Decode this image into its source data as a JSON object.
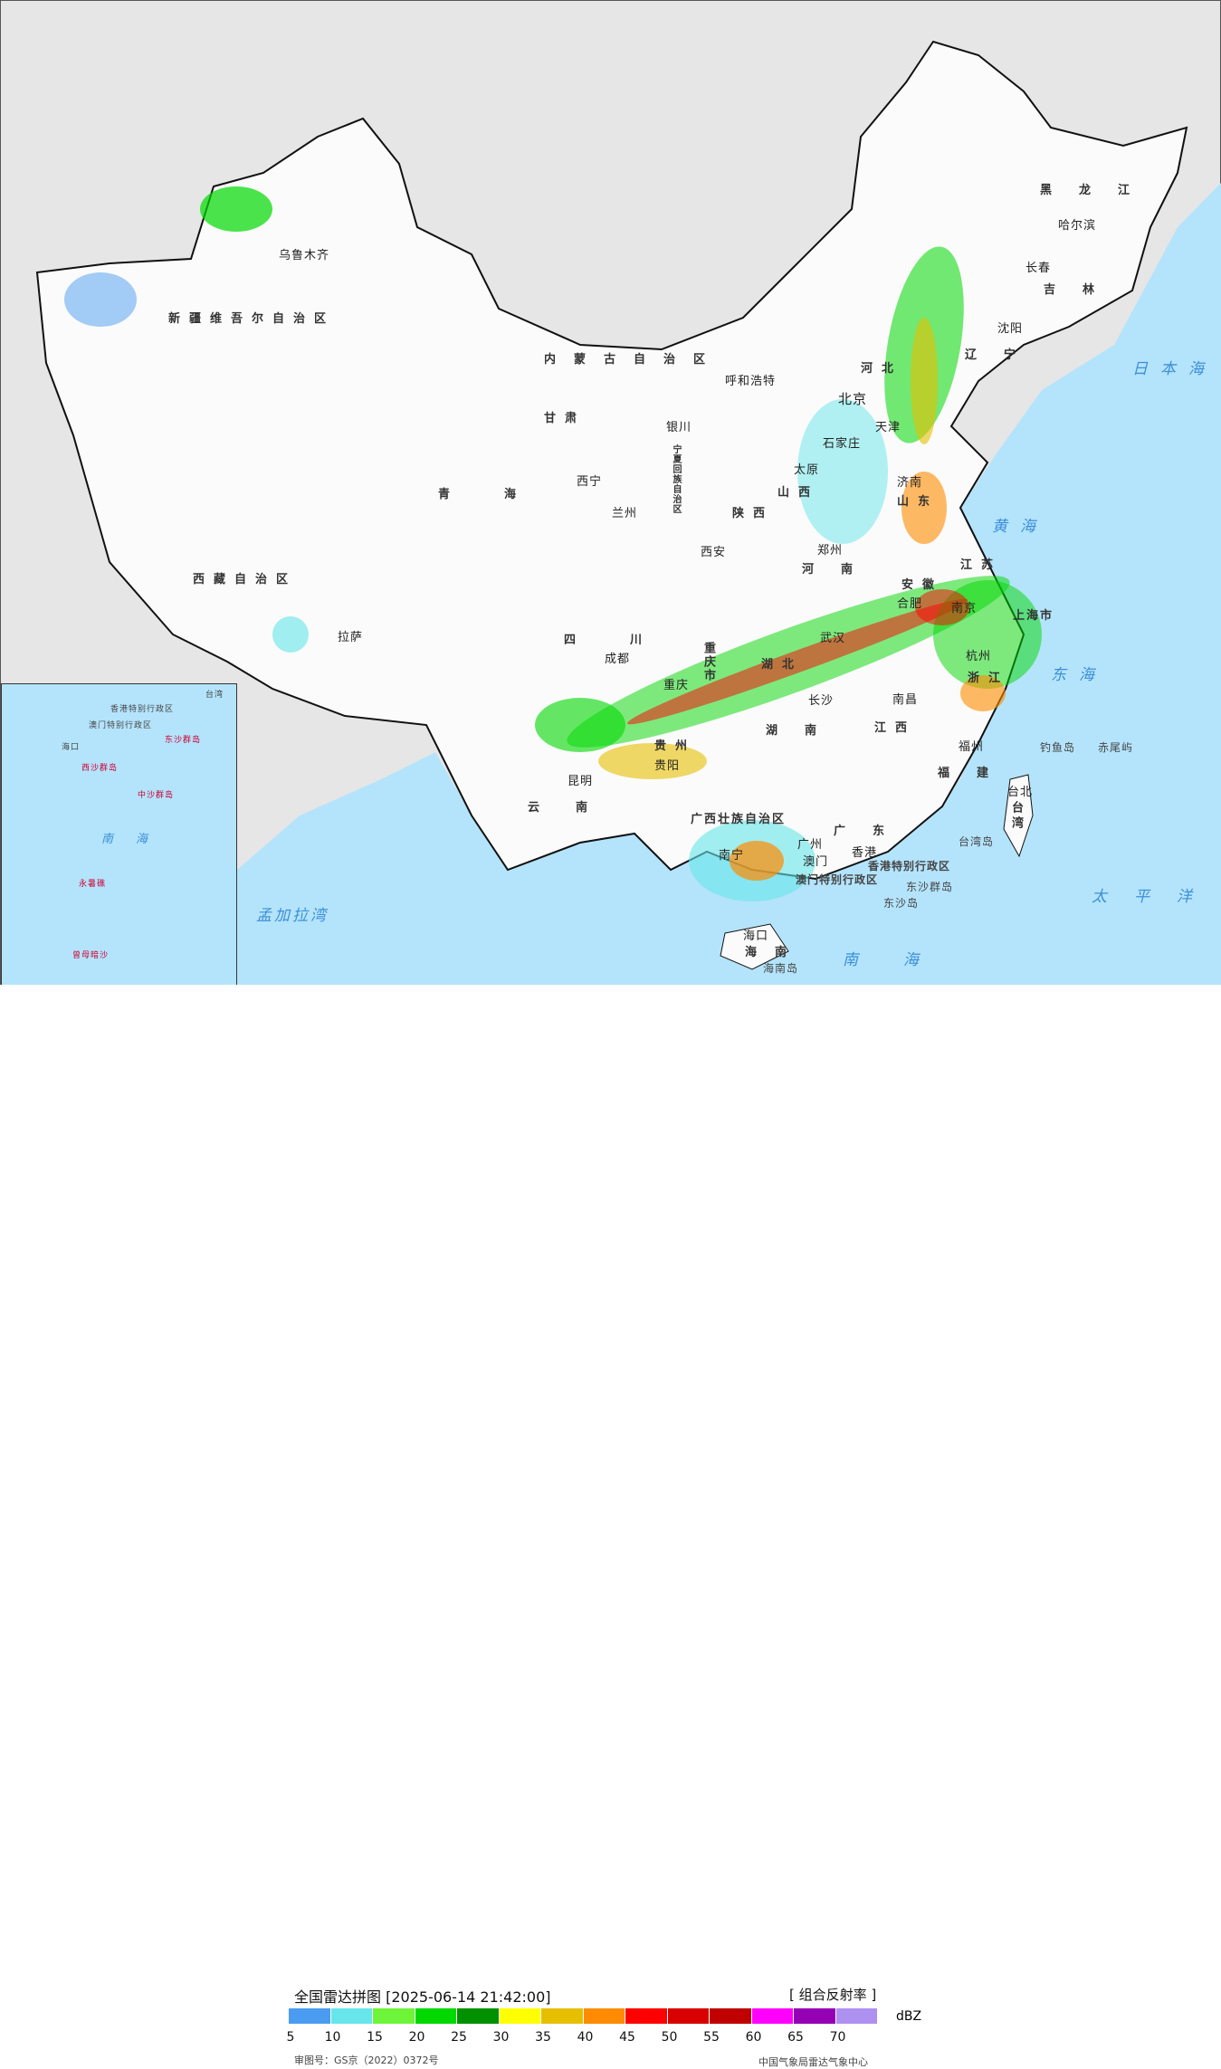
{
  "map": {
    "provinces": [
      "新疆维吾尔自治区",
      "西藏自治区",
      "青海",
      "甘肃",
      "内蒙古自治区",
      "四川",
      "云南",
      "广西壮族自治区",
      "广东",
      "湖南",
      "湖北",
      "河南",
      "河北",
      "山西",
      "陕西",
      "山东",
      "江苏",
      "安徽",
      "浙江",
      "江西",
      "福建",
      "黑龙江",
      "吉林",
      "辽宁",
      "海南",
      "台湾",
      "宁夏回族自治区",
      "重庆市",
      "上海市",
      "贵州"
    ],
    "cities": [
      "乌鲁木齐",
      "拉萨",
      "西宁",
      "兰州",
      "银川",
      "呼和浩特",
      "北京",
      "天津",
      "石家庄",
      "太原",
      "济南",
      "郑州",
      "西安",
      "成都",
      "重庆",
      "贵阳",
      "昆明",
      "南宁",
      "广州",
      "长沙",
      "武汉",
      "南昌",
      "福州",
      "杭州",
      "南京",
      "合肥",
      "哈尔滨",
      "长春",
      "沈阳",
      "台北",
      "海口",
      "澳门",
      "香港"
    ],
    "seas": [
      "黄海",
      "东海",
      "太平洋",
      "日本海",
      "南海",
      "孟加拉湾"
    ],
    "islands": [
      "钓鱼岛",
      "赤尾屿",
      "台湾岛",
      "东沙群岛",
      "东沙岛",
      "海南岛",
      "香港特别行政区",
      "澳门特别行政区"
    ],
    "inset_labels": [
      "南海",
      "中沙群岛",
      "西沙群岛",
      "永暑礁",
      "曾母暗沙",
      "海口",
      "香港特别行政区",
      "澳门特别行政区",
      "东沙群岛",
      "台湾"
    ]
  },
  "legend": {
    "title": "全国雷达拼图 [2025-06-14 21:42:00]",
    "product": "[ 组合反射率 ]",
    "unit": "dBZ",
    "colors": [
      "#4a9cf0",
      "#66e6ea",
      "#6ef53a",
      "#00d800",
      "#009000",
      "#ffff00",
      "#e6c000",
      "#ff8c00",
      "#ff0000",
      "#d80000",
      "#c00000",
      "#ff00ff",
      "#9600b4",
      "#ae90f0"
    ],
    "ticks": [
      "5",
      "10",
      "15",
      "20",
      "25",
      "30",
      "35",
      "40",
      "45",
      "50",
      "55",
      "60",
      "65",
      "70"
    ],
    "approval": "审图号：GS京（2022）0372号",
    "org": "中国气象局雷达气象中心"
  }
}
